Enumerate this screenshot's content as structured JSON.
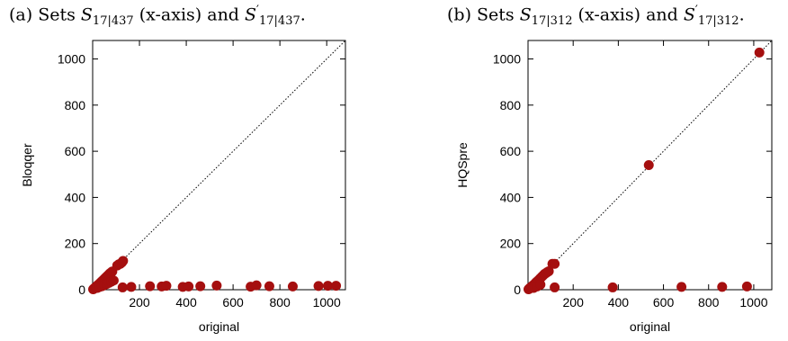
{
  "captions": [
    {
      "prefix": "(a) Sets ",
      "s1": "S",
      "s1_sub": "17|437",
      "middle": " (x-axis) and ",
      "s2": "S",
      "s2_sup": "′",
      "s2_sub": "17|437",
      "suffix": "."
    },
    {
      "prefix": "(b) Sets ",
      "s1": "S",
      "s1_sub": "17|312",
      "middle": " (x-axis) and ",
      "s2": "S",
      "s2_sup": "′",
      "s2_sub": "17|312",
      "suffix": "."
    }
  ],
  "colors": {
    "marker": "#a50f0f",
    "axis": "#000000",
    "diagonal": "#000000"
  },
  "chart_data": [
    {
      "type": "scatter",
      "xlabel": "original",
      "ylabel": "Bloqqer",
      "xlim": [
        0,
        1080
      ],
      "ylim": [
        0,
        1080
      ],
      "xticks": [
        200,
        400,
        600,
        800,
        1000
      ],
      "yticks": [
        0,
        200,
        400,
        600,
        800,
        1000
      ],
      "diagonal": true,
      "points": [
        [
          2,
          2
        ],
        [
          4,
          3
        ],
        [
          6,
          5
        ],
        [
          8,
          7
        ],
        [
          10,
          9
        ],
        [
          12,
          10
        ],
        [
          14,
          12
        ],
        [
          16,
          14
        ],
        [
          18,
          16
        ],
        [
          20,
          18
        ],
        [
          22,
          20
        ],
        [
          25,
          22
        ],
        [
          28,
          25
        ],
        [
          31,
          28
        ],
        [
          34,
          31
        ],
        [
          37,
          34
        ],
        [
          40,
          37
        ],
        [
          44,
          41
        ],
        [
          48,
          45
        ],
        [
          52,
          49
        ],
        [
          56,
          53
        ],
        [
          60,
          57
        ],
        [
          64,
          61
        ],
        [
          68,
          65
        ],
        [
          72,
          69
        ],
        [
          76,
          72
        ],
        [
          80,
          76
        ],
        [
          84,
          79
        ],
        [
          20,
          8
        ],
        [
          30,
          12
        ],
        [
          40,
          15
        ],
        [
          50,
          20
        ],
        [
          60,
          25
        ],
        [
          70,
          30
        ],
        [
          80,
          35
        ],
        [
          90,
          40
        ],
        [
          105,
          105
        ],
        [
          112,
          110
        ],
        [
          118,
          112
        ],
        [
          125,
          118
        ],
        [
          130,
          125
        ],
        [
          128,
          10
        ],
        [
          165,
          12
        ],
        [
          245,
          15
        ],
        [
          295,
          14
        ],
        [
          315,
          17
        ],
        [
          385,
          12
        ],
        [
          410,
          14
        ],
        [
          460,
          15
        ],
        [
          530,
          18
        ],
        [
          675,
          13
        ],
        [
          700,
          19
        ],
        [
          755,
          15
        ],
        [
          855,
          14
        ],
        [
          965,
          16
        ],
        [
          1005,
          17
        ],
        [
          1040,
          17
        ]
      ]
    },
    {
      "type": "scatter",
      "xlabel": "original",
      "ylabel": "HQSpre",
      "xlim": [
        0,
        1080
      ],
      "ylim": [
        0,
        1080
      ],
      "xticks": [
        200,
        400,
        600,
        800,
        1000
      ],
      "yticks": [
        0,
        200,
        400,
        600,
        800,
        1000
      ],
      "diagonal": true,
      "points": [
        [
          2,
          2
        ],
        [
          4,
          3
        ],
        [
          6,
          5
        ],
        [
          8,
          7
        ],
        [
          10,
          9
        ],
        [
          13,
          10
        ],
        [
          16,
          13
        ],
        [
          19,
          16
        ],
        [
          22,
          19
        ],
        [
          26,
          22
        ],
        [
          30,
          26
        ],
        [
          34,
          30
        ],
        [
          38,
          34
        ],
        [
          43,
          38
        ],
        [
          48,
          43
        ],
        [
          53,
          48
        ],
        [
          58,
          53
        ],
        [
          63,
          58
        ],
        [
          68,
          63
        ],
        [
          73,
          68
        ],
        [
          80,
          72
        ],
        [
          85,
          76
        ],
        [
          92,
          80
        ],
        [
          25,
          8
        ],
        [
          40,
          14
        ],
        [
          55,
          22
        ],
        [
          108,
          112
        ],
        [
          118,
          112
        ],
        [
          118,
          10
        ],
        [
          375,
          10
        ],
        [
          680,
          12
        ],
        [
          860,
          12
        ],
        [
          970,
          14
        ],
        [
          535,
          540
        ],
        [
          1025,
          1028
        ]
      ]
    }
  ]
}
